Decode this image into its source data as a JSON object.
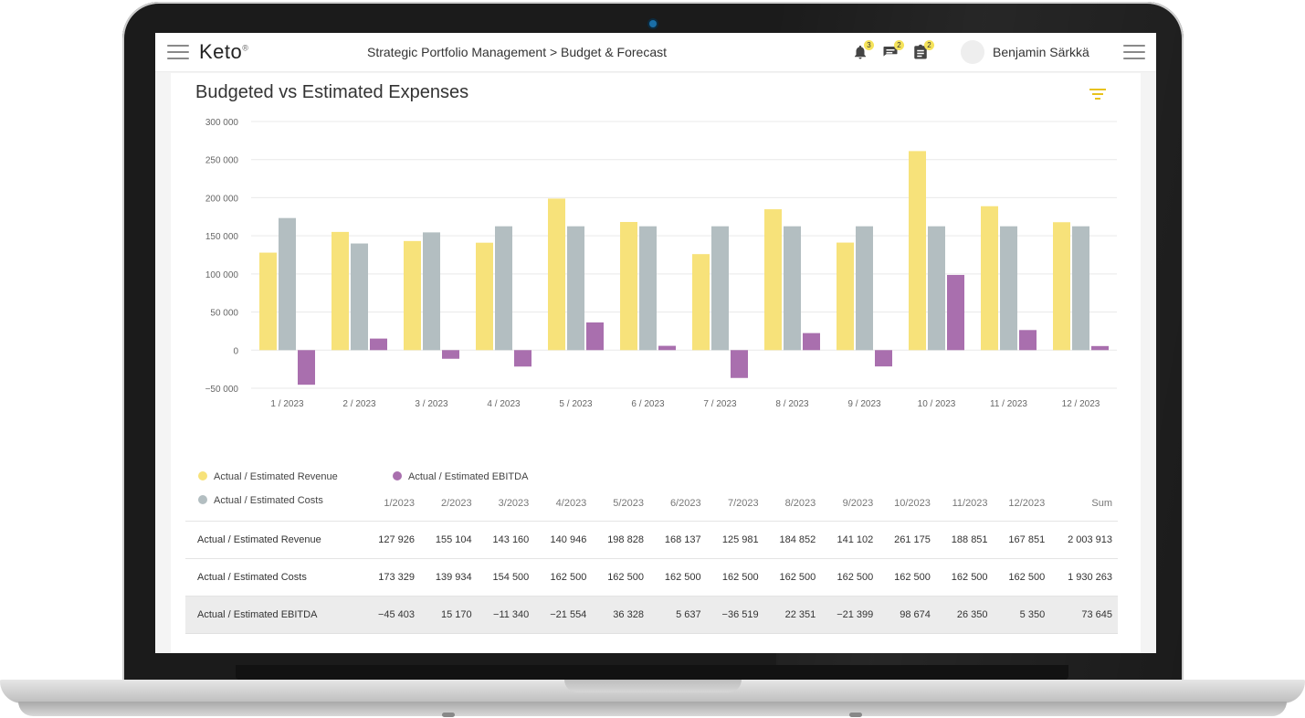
{
  "app": {
    "logo_text": "Keto",
    "logo_mark": "®",
    "breadcrumb": "Strategic Portfolio Management > Budget & Forecast",
    "notifications_count": "3",
    "messages_count": "2",
    "tasks_count": "2",
    "user_name": "Benjamin Särkkä"
  },
  "report": {
    "title": "Budgeted vs Estimated Expenses"
  },
  "colors": {
    "revenue": "#f7e27a",
    "costs": "#b3bec1",
    "ebitda": "#a96fae",
    "accent": "#e8c21c"
  },
  "legend": {
    "revenue": "Actual / Estimated Revenue",
    "ebitda": "Actual / Estimated EBITDA",
    "costs": "Actual / Estimated Costs"
  },
  "chart_data": {
    "type": "bar",
    "categories": [
      "1 / 2023",
      "2 / 2023",
      "3 / 2023",
      "4 / 2023",
      "5 / 2023",
      "6 / 2023",
      "7 / 2023",
      "8 / 2023",
      "9 / 2023",
      "10 / 2023",
      "11 / 2023",
      "12 / 2023"
    ],
    "series": [
      {
        "name": "Actual / Estimated Revenue",
        "values": [
          127926,
          155104,
          143160,
          140946,
          198828,
          168137,
          125981,
          184852,
          141102,
          261175,
          188851,
          167851
        ]
      },
      {
        "name": "Actual / Estimated Costs",
        "values": [
          173329,
          139934,
          154500,
          162500,
          162500,
          162500,
          162500,
          162500,
          162500,
          162500,
          162500,
          162500
        ]
      },
      {
        "name": "Actual / Estimated EBITDA",
        "values": [
          -45403,
          15170,
          -11340,
          -21554,
          36328,
          5637,
          -36519,
          22351,
          -21399,
          98674,
          26350,
          5350
        ]
      }
    ],
    "yticks": [
      "300 000",
      "250 000",
      "200 000",
      "150 000",
      "100 000",
      "50 000",
      "0",
      "−50 000"
    ],
    "ylim": [
      -50000,
      300000
    ],
    "grid": true,
    "legend_position": "bottom-left"
  },
  "table": {
    "headers": [
      "1/2023",
      "2/2023",
      "3/2023",
      "4/2023",
      "5/2023",
      "6/2023",
      "7/2023",
      "8/2023",
      "9/2023",
      "10/2023",
      "11/2023",
      "12/2023",
      "Sum"
    ],
    "rows": [
      {
        "label": "Actual / Estimated Revenue",
        "cells": [
          "127 926",
          "155 104",
          "143 160",
          "140 946",
          "198 828",
          "168 137",
          "125 981",
          "184 852",
          "141 102",
          "261 175",
          "188 851",
          "167 851",
          "2 003 913"
        ]
      },
      {
        "label": "Actual / Estimated Costs",
        "cells": [
          "173 329",
          "139 934",
          "154 500",
          "162 500",
          "162 500",
          "162 500",
          "162 500",
          "162 500",
          "162 500",
          "162 500",
          "162 500",
          "162 500",
          "1 930 263"
        ]
      },
      {
        "label": "Actual / Estimated EBITDA",
        "cells": [
          "−45 403",
          "15 170",
          "−11 340",
          "−21 554",
          "36 328",
          "5 637",
          "−36 519",
          "22 351",
          "−21 399",
          "98 674",
          "26 350",
          "5 350",
          "73 645"
        ]
      }
    ]
  }
}
